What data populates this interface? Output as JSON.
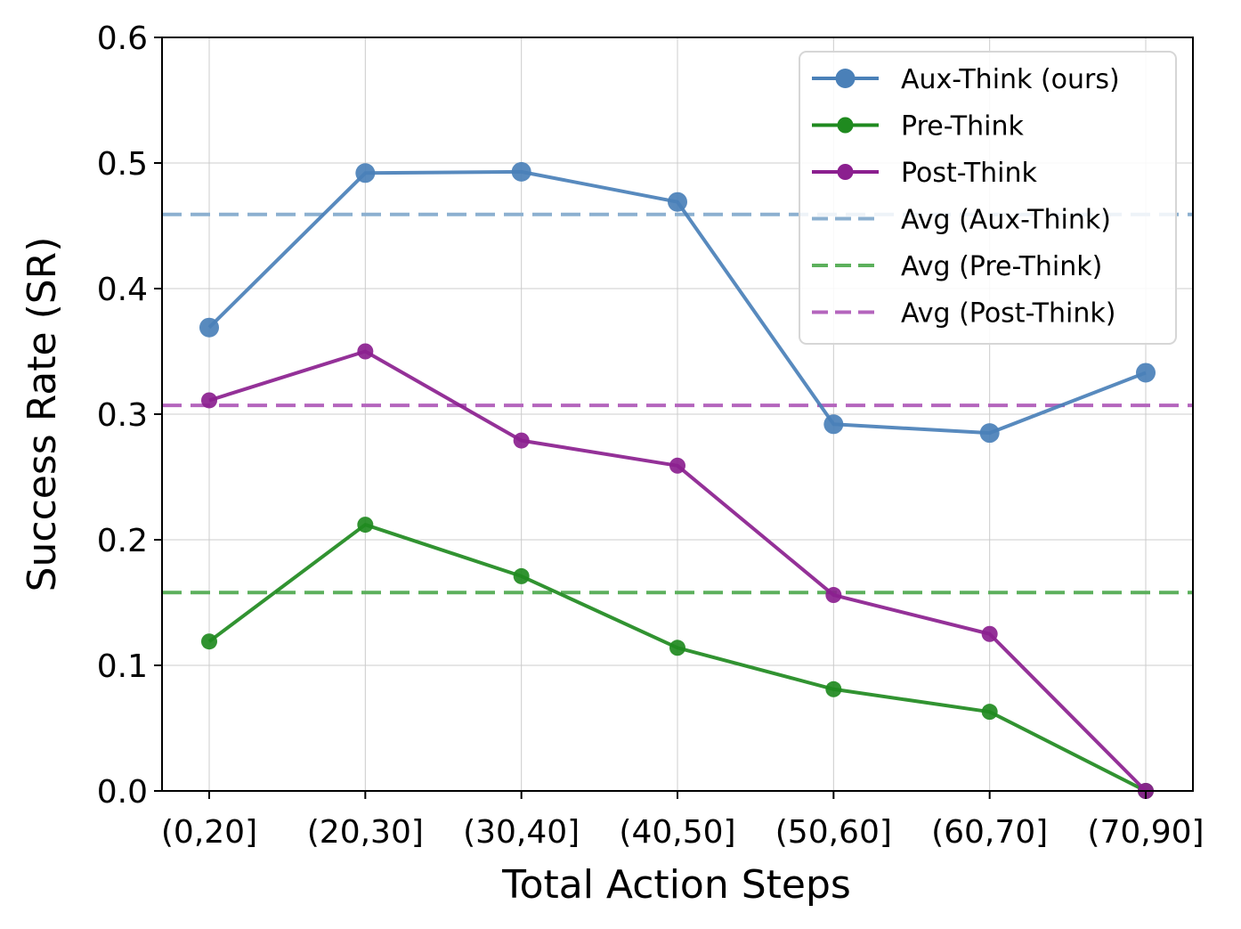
{
  "chart_data": {
    "type": "line",
    "title": "",
    "xlabel": "Total Action Steps",
    "ylabel": "Success Rate (SR)",
    "categories": [
      "(0,20]",
      "(20,30]",
      "(30,40]",
      "(40,50]",
      "(50,60]",
      "(60,70]",
      "(70,90]"
    ],
    "ylim": [
      0.0,
      0.6
    ],
    "yticks": [
      "0.0",
      "0.1",
      "0.2",
      "0.3",
      "0.4",
      "0.5",
      "0.6"
    ],
    "grid": true,
    "legend_position": "top-right",
    "series": [
      {
        "name": "Aux-Think (ours)",
        "color": "#4a80b8",
        "values": [
          0.369,
          0.492,
          0.493,
          0.469,
          0.292,
          0.285,
          0.333
        ]
      },
      {
        "name": "Pre-Think",
        "color": "#1f8a1f",
        "values": [
          0.119,
          0.212,
          0.171,
          0.114,
          0.081,
          0.063,
          0.0
        ]
      },
      {
        "name": "Post-Think",
        "color": "#8b1f8f",
        "values": [
          0.311,
          0.35,
          0.279,
          0.259,
          0.156,
          0.125,
          0.0
        ]
      }
    ],
    "averages": [
      {
        "name": "Avg (Aux-Think)",
        "color": "#8cb0d0",
        "value": 0.459
      },
      {
        "name": "Avg (Pre-Think)",
        "color": "#5cb05c",
        "value": 0.158
      },
      {
        "name": "Avg (Post-Think)",
        "color": "#b465bd",
        "value": 0.307
      }
    ]
  }
}
